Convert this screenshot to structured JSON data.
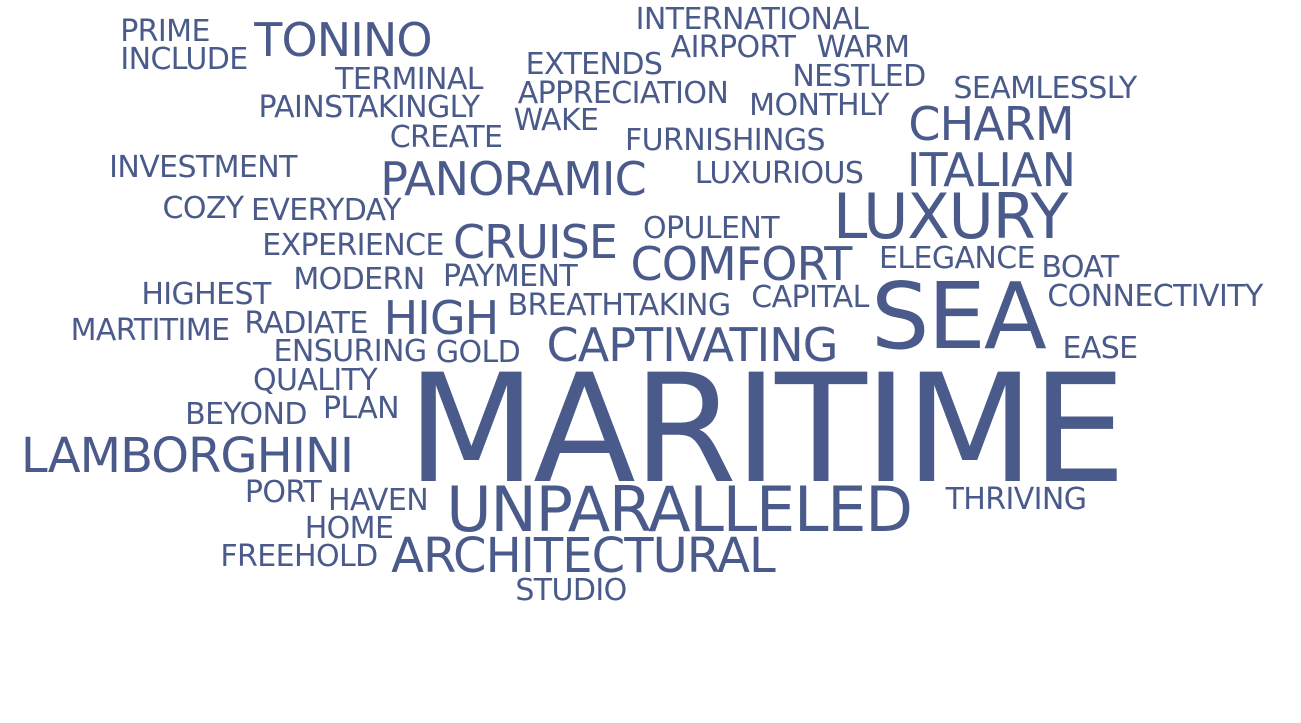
{
  "colors": {
    "word": "#4a5a8a",
    "background": "#ffffff"
  },
  "words": [
    {
      "text": "MARITIME",
      "weight": 100
    },
    {
      "text": "SEA",
      "weight": 62
    },
    {
      "text": "UNPARALLELED",
      "weight": 42
    },
    {
      "text": "LUXURY",
      "weight": 42
    },
    {
      "text": "LAMBORGHINI",
      "weight": 34
    },
    {
      "text": "ARCHITECTURAL",
      "weight": 34
    },
    {
      "text": "CAPTIVATING",
      "weight": 32
    },
    {
      "text": "PANORAMIC",
      "weight": 31
    },
    {
      "text": "TONINO",
      "weight": 31
    },
    {
      "text": "CHARM",
      "weight": 31
    },
    {
      "text": "ITALIAN",
      "weight": 31
    },
    {
      "text": "CRUISE",
      "weight": 31
    },
    {
      "text": "COMFORT",
      "weight": 31
    },
    {
      "text": "HIGH",
      "weight": 31
    },
    {
      "text": "PRIME",
      "weight": 22
    },
    {
      "text": "INCLUDE",
      "weight": 22
    },
    {
      "text": "INTERNATIONAL",
      "weight": 22
    },
    {
      "text": "AIRPORT",
      "weight": 22
    },
    {
      "text": "WARM",
      "weight": 22
    },
    {
      "text": "TERMINAL",
      "weight": 22
    },
    {
      "text": "EXTENDS",
      "weight": 22
    },
    {
      "text": "NESTLED",
      "weight": 22
    },
    {
      "text": "APPRECIATION",
      "weight": 22
    },
    {
      "text": "SEAMLESSLY",
      "weight": 22
    },
    {
      "text": "PAINSTAKINGLY",
      "weight": 22
    },
    {
      "text": "MONTHLY",
      "weight": 22
    },
    {
      "text": "WAKE",
      "weight": 22
    },
    {
      "text": "CREATE",
      "weight": 22
    },
    {
      "text": "FURNISHINGS",
      "weight": 22
    },
    {
      "text": "INVESTMENT",
      "weight": 22
    },
    {
      "text": "LUXURIOUS",
      "weight": 22
    },
    {
      "text": "COZY",
      "weight": 22
    },
    {
      "text": "EVERYDAY",
      "weight": 22
    },
    {
      "text": "OPULENT",
      "weight": 22
    },
    {
      "text": "EXPERIENCE",
      "weight": 22
    },
    {
      "text": "ELEGANCE",
      "weight": 22
    },
    {
      "text": "BOAT",
      "weight": 22
    },
    {
      "text": "MODERN",
      "weight": 22
    },
    {
      "text": "PAYMENT",
      "weight": 22
    },
    {
      "text": "HIGHEST",
      "weight": 22
    },
    {
      "text": "CAPITAL",
      "weight": 22
    },
    {
      "text": "CONNECTIVITY",
      "weight": 22
    },
    {
      "text": "BREATHTAKING",
      "weight": 22
    },
    {
      "text": "MARTITIME",
      "weight": 22
    },
    {
      "text": "RADIATE",
      "weight": 22
    },
    {
      "text": "ENSURING",
      "weight": 22
    },
    {
      "text": "GOLD",
      "weight": 22
    },
    {
      "text": "EASE",
      "weight": 22
    },
    {
      "text": "QUALITY",
      "weight": 22
    },
    {
      "text": "BEYOND",
      "weight": 22
    },
    {
      "text": "PLAN",
      "weight": 22
    },
    {
      "text": "PORT",
      "weight": 22
    },
    {
      "text": "HAVEN",
      "weight": 22
    },
    {
      "text": "THRIVING",
      "weight": 22
    },
    {
      "text": "HOME",
      "weight": 22
    },
    {
      "text": "FREEHOLD",
      "weight": 22
    },
    {
      "text": "STUDIO",
      "weight": 22
    }
  ]
}
